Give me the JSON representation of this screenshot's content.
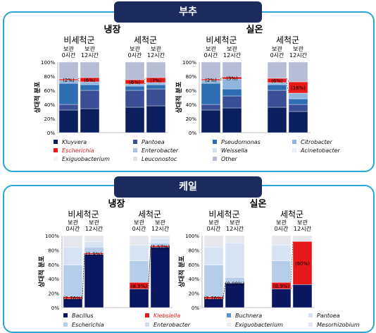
{
  "sections": [
    {
      "title": "부추",
      "panels": [
        {
          "title": "냉장",
          "group_labels": [
            "비세척군",
            "세척군"
          ]
        },
        {
          "title": "실온",
          "group_labels": [
            "비세척군",
            "세척군"
          ]
        }
      ],
      "legend": [
        {
          "label": "Kluyvera",
          "color": "#0b1f5e"
        },
        {
          "label": "Pantoea",
          "color": "#3a4f96"
        },
        {
          "label": "Pseudomonas",
          "color": "#2f6db3"
        },
        {
          "label": "Citrobacter",
          "color": "#8fb4de"
        },
        {
          "label": "Escherichia",
          "color": "#e8191b"
        },
        {
          "label": "Enterobacter",
          "color": "#a7c3e6"
        },
        {
          "label": "Weissella",
          "color": "#d2e1f2"
        },
        {
          "label": "Acinetobacter",
          "color": "#e9f0f8"
        },
        {
          "label": "Exiguobacterium",
          "color": "#f2f2f2"
        },
        {
          "label": "Leuconostoc",
          "color": "#dfe2ea"
        },
        {
          "label": "Other",
          "color": "#b8bdd6"
        }
      ]
    },
    {
      "title": "케일",
      "panels": [
        {
          "title": "냉장",
          "group_labels": [
            "비세척군",
            "세척군"
          ]
        },
        {
          "title": "실온",
          "group_labels": [
            "비세척군",
            "세척군"
          ]
        }
      ],
      "legend": [
        {
          "label": "Bacillus",
          "color": "#0b1660"
        },
        {
          "label": "Klebsiella",
          "color": "#e8191b"
        },
        {
          "label": "Buchnera",
          "color": "#5d8fcf"
        },
        {
          "label": "Pantoea",
          "color": "#d7e3f3"
        },
        {
          "label": "Escherichia",
          "color": "#b6cde9"
        },
        {
          "label": "Enterobacter",
          "color": "#cfdcee"
        },
        {
          "label": "Exiguobacterium",
          "color": "#eeeeee"
        },
        {
          "label": "Mesorhizobium",
          "color": "#e3e6ee"
        }
      ]
    }
  ],
  "bar_label_top": "보관",
  "bar_labels": [
    "0시간",
    "12시간"
  ],
  "ylabel": "상대적 분포",
  "ytick_labels": [
    "0%",
    "20%",
    "40%",
    "60%",
    "80%",
    "100%"
  ],
  "chart_data": [
    {
      "type": "bar",
      "stacked": true,
      "title": "부추 냉장",
      "categories": [
        "비세척군 보관 0시간",
        "비세척군 보관 12시간",
        "세척군 보관 0시간",
        "세척군 보관 12시간"
      ],
      "ylabel": "상대적 분포",
      "ylim": [
        0,
        100
      ],
      "series": [
        {
          "name": "Kluyvera",
          "values": [
            32,
            34,
            36,
            38
          ]
        },
        {
          "name": "Pantoea",
          "values": [
            8,
            26,
            24,
            24
          ]
        },
        {
          "name": "Pseudomonas",
          "values": [
            30,
            8,
            6,
            6
          ]
        },
        {
          "name": "Citrobacter",
          "values": [
            4,
            4,
            3,
            3
          ]
        },
        {
          "name": "Escherichia",
          "values": [
            2,
            6,
            6,
            7
          ]
        },
        {
          "name": "Other",
          "values": [
            24,
            22,
            25,
            22
          ]
        }
      ],
      "annotations": [
        "(2%)",
        "(6%)",
        "(6%)",
        "(7%)"
      ]
    },
    {
      "type": "bar",
      "stacked": true,
      "title": "부추 실온",
      "categories": [
        "비세척군 보관 0시간",
        "비세척군 보관 12시간",
        "세척군 보관 0시간",
        "세척군 보관 12시간"
      ],
      "ylabel": "상대적 분포",
      "ylim": [
        0,
        100
      ],
      "series": [
        {
          "name": "Kluyvera",
          "values": [
            32,
            35,
            36,
            30
          ]
        },
        {
          "name": "Pantoea",
          "values": [
            8,
            17,
            24,
            10
          ]
        },
        {
          "name": "Pseudomonas",
          "values": [
            30,
            10,
            8,
            8
          ]
        },
        {
          "name": "Citrobacter",
          "values": [
            4,
            14,
            3,
            8
          ]
        },
        {
          "name": "Escherichia",
          "values": [
            2,
            3,
            6,
            16
          ]
        },
        {
          "name": "Other",
          "values": [
            24,
            21,
            23,
            28
          ]
        }
      ],
      "annotations": [
        "(2%)",
        "(3%)",
        "(6%)",
        "(16%)"
      ]
    },
    {
      "type": "bar",
      "stacked": true,
      "title": "케일 냉장",
      "categories": [
        "비세척군 보관 0시간",
        "비세척군 보관 12시간",
        "세척군 보관 0시간",
        "세척군 보관 12시간"
      ],
      "ylabel": "상대적 분포",
      "ylim": [
        0,
        100
      ],
      "series": [
        {
          "name": "Bacillus",
          "values": [
            12,
            74,
            26,
            84
          ]
        },
        {
          "name": "Klebsiella",
          "values": [
            3,
            2,
            9,
            2
          ]
        },
        {
          "name": "Escherichia",
          "values": [
            44,
            8,
            30,
            4
          ]
        },
        {
          "name": "Pantoea",
          "values": [
            25,
            8,
            22,
            6
          ]
        },
        {
          "name": "Other",
          "values": [
            16,
            8,
            13,
            4
          ]
        }
      ],
      "annotations": [
        "(2.76%)",
        "(1.9%)",
        "(8.9%)",
        "(1.57%)"
      ]
    },
    {
      "type": "bar",
      "stacked": true,
      "title": "케일 실온",
      "categories": [
        "비세척군 보관 0시간",
        "비세척군 보관 12시간",
        "세척군 보관 0시간",
        "세척군 보관 12시간"
      ],
      "ylabel": "상대적 분포",
      "ylim": [
        0,
        100
      ],
      "series": [
        {
          "name": "Bacillus",
          "values": [
            12,
            34,
            26,
            32
          ]
        },
        {
          "name": "Klebsiella",
          "values": [
            3,
            0.08,
            9,
            60
          ]
        },
        {
          "name": "Escherichia",
          "values": [
            44,
            8,
            30,
            0
          ]
        },
        {
          "name": "Pantoea",
          "values": [
            25,
            48,
            22,
            0
          ]
        },
        {
          "name": "Other",
          "values": [
            16,
            10,
            13,
            8
          ]
        }
      ],
      "annotations": [
        "(2.76%)",
        "(0.08%)",
        "(8.9%)",
        "(60%)"
      ]
    }
  ]
}
